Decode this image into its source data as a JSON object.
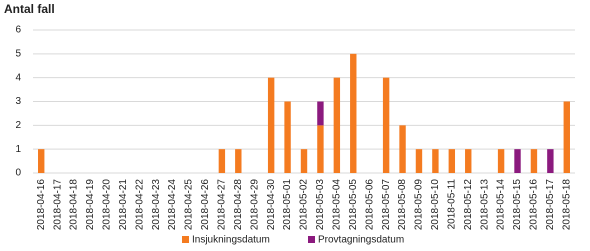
{
  "chart_data": {
    "type": "stacked_bar",
    "y_label": "Antal fall",
    "categories": [
      "2018-04-16",
      "2018-04-17",
      "2018-04-18",
      "2018-04-19",
      "2018-04-20",
      "2018-04-21",
      "2018-04-22",
      "2018-04-23",
      "2018-04-24",
      "2018-04-25",
      "2018-04-26",
      "2018-04-27",
      "2018-04-28",
      "2018-04-29",
      "2018-04-30",
      "2018-05-01",
      "2018-05-02",
      "2018-05-03",
      "2018-05-04",
      "2018-05-05",
      "2018-05-06",
      "2018-05-07",
      "2018-05-08",
      "2018-05-09",
      "2018-05-10",
      "2018-05-11",
      "2018-05-12",
      "2018-05-13",
      "2018-05-14",
      "2018-05-15",
      "2018-05-16",
      "2018-05-17",
      "2018-05-18"
    ],
    "series": [
      {
        "name": "Insjukningsdatum",
        "color": "#f47b20",
        "values": [
          1,
          0,
          0,
          0,
          0,
          0,
          0,
          0,
          0,
          0,
          0,
          1,
          1,
          0,
          4,
          3,
          1,
          2,
          4,
          5,
          0,
          4,
          2,
          1,
          1,
          1,
          1,
          0,
          1,
          0,
          1,
          0,
          3
        ]
      },
      {
        "name": "Provtagningsdatum",
        "color": "#8b1a7e",
        "values": [
          0,
          0,
          0,
          0,
          0,
          0,
          0,
          0,
          0,
          0,
          0,
          0,
          0,
          0,
          0,
          0,
          0,
          1,
          0,
          0,
          0,
          0,
          0,
          0,
          0,
          0,
          0,
          0,
          0,
          1,
          0,
          1,
          0
        ]
      }
    ],
    "ylim": [
      0,
      6
    ],
    "yticks": [
      0,
      1,
      2,
      3,
      4,
      5,
      6
    ],
    "grid": true,
    "legend": "bottom"
  }
}
